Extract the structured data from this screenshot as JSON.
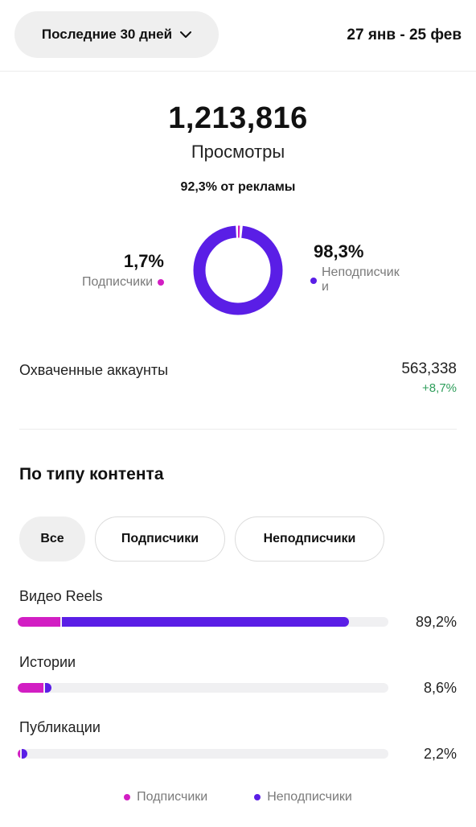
{
  "header": {
    "period_label": "Последние 30 дней",
    "date_range": "27 янв - 25 фев"
  },
  "summary": {
    "views_value": "1,213,816",
    "views_label": "Просмотры",
    "ads_share": "92,3% от рекламы"
  },
  "donut": {
    "followers_pct_label": "1,7%",
    "followers_label": "Подписчики",
    "non_followers_pct_label": "98,3%",
    "non_followers_label": "Неподписчик\nи",
    "followers_share": 1.7,
    "non_followers_share": 98.3,
    "colors": {
      "followers": "#d21ec3",
      "non_followers": "#5a1ee6"
    }
  },
  "reach": {
    "label": "Охваченные аккаунты",
    "value": "563,338",
    "change": "+8,7%",
    "change_color": "#2f9e5b"
  },
  "content_type": {
    "title": "По типу контента",
    "chips": [
      "Все",
      "Подписчики",
      "Неподписчики"
    ],
    "active_chip": "Все",
    "rows": [
      {
        "label": "Видео Reels",
        "pct_label": "89,2%",
        "followers_fill": 0.115,
        "non_followers_fill": 0.775
      },
      {
        "label": "Истории",
        "pct_label": "8,6%",
        "followers_fill": 0.07,
        "non_followers_fill": 0.016
      },
      {
        "label": "Публикации",
        "pct_label": "2,2%",
        "followers_fill": 0.006,
        "non_followers_fill": 0.016
      }
    ]
  },
  "legend": {
    "followers": "Подписчики",
    "non_followers": "Неподписчики"
  }
}
